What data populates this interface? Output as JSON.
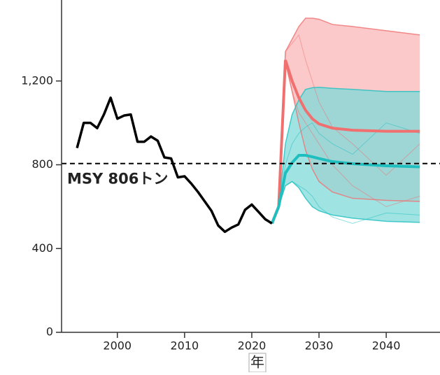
{
  "chart_data": {
    "type": "line",
    "x_label": "年",
    "xlim": [
      1991.7,
      2048
    ],
    "ylim": [
      0,
      1570
    ],
    "xticks": [
      2000,
      2010,
      2020,
      2030,
      2040
    ],
    "yticks": [
      0,
      400,
      800,
      {
        "value": 1200,
        "label": "1,200"
      }
    ],
    "hline": {
      "value": 806,
      "label": "MSY 806トン",
      "color": "#000000"
    },
    "historical": {
      "color": "#000000",
      "x": [
        1994,
        1995,
        1996,
        1997,
        1998,
        1999,
        2000,
        2001,
        2002,
        2003,
        2004,
        2005,
        2006,
        2007,
        2008,
        2009,
        2010,
        2011,
        2012,
        2013,
        2014,
        2015,
        2016,
        2017,
        2018,
        2019,
        2020,
        2021,
        2022,
        2023
      ],
      "values": [
        880,
        1000,
        1000,
        975,
        1040,
        1120,
        1020,
        1035,
        1040,
        910,
        910,
        935,
        915,
        835,
        830,
        740,
        745,
        710,
        670,
        625,
        580,
        510,
        480,
        500,
        515,
        585,
        610,
        575,
        540,
        520
      ]
    },
    "projection_x": [
      2023,
      2024,
      2025,
      2026,
      2027,
      2028,
      2029,
      2030,
      2032,
      2035,
      2040,
      2045
    ],
    "projections": [
      {
        "color": "#f07070",
        "band_color": "#f9b7b7",
        "median": [
          520,
          600,
          1300,
          1200,
          1120,
          1060,
          1020,
          995,
          975,
          965,
          960,
          960
        ],
        "upper": [
          520,
          600,
          1340,
          1400,
          1460,
          1500,
          1500,
          1495,
          1470,
          1460,
          1440,
          1420
        ],
        "lower": [
          520,
          600,
          1290,
          1150,
          1000,
          870,
          780,
          720,
          670,
          640,
          630,
          625
        ],
        "trajectories": [
          [
            520,
            600,
            1340,
            1380,
            1420,
            1300,
            1200,
            1100,
            980,
            900,
            750,
            900
          ],
          [
            520,
            600,
            1300,
            1150,
            1050,
            1000,
            950,
            900,
            800,
            700,
            600,
            650
          ]
        ]
      },
      {
        "color": "#1fbfbf",
        "band_color": "#7fd9d9",
        "median": [
          520,
          600,
          760,
          810,
          845,
          845,
          838,
          830,
          815,
          805,
          795,
          790
        ],
        "upper": [
          520,
          600,
          900,
          1040,
          1110,
          1160,
          1168,
          1170,
          1165,
          1160,
          1150,
          1150
        ],
        "lower": [
          520,
          600,
          700,
          720,
          690,
          640,
          600,
          580,
          560,
          545,
          530,
          525
        ],
        "trajectories": [
          [
            520,
            600,
            800,
            900,
            950,
            980,
            1000,
            950,
            900,
            850,
            1000,
            950
          ],
          [
            520,
            600,
            700,
            720,
            700,
            680,
            650,
            600,
            550,
            520,
            570,
            560
          ]
        ]
      }
    ]
  }
}
